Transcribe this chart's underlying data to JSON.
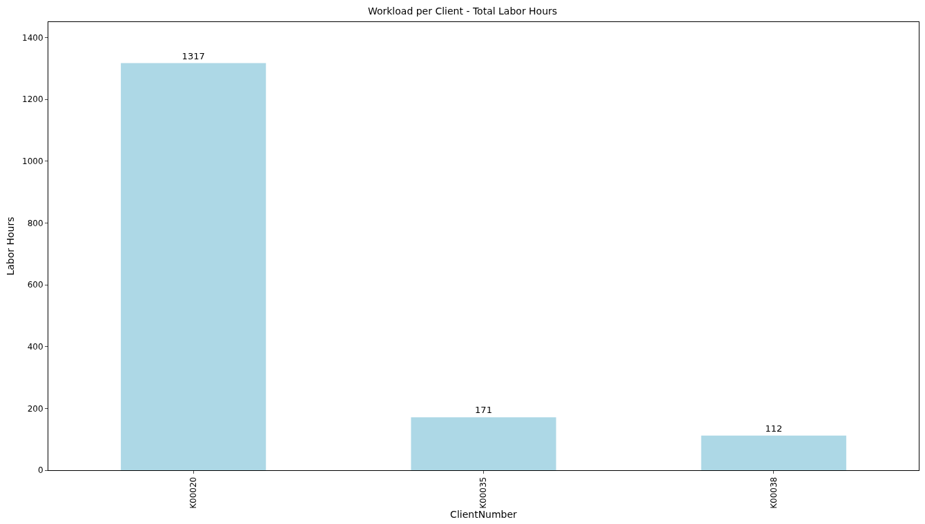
{
  "chart_data": {
    "type": "bar",
    "title": "Workload per Client - Total Labor Hours",
    "xlabel": "ClientNumber",
    "ylabel": "Labor Hours",
    "categories": [
      "K00020",
      "K00035",
      "K00038"
    ],
    "values": [
      1317,
      171,
      112
    ],
    "color": "#add8e6",
    "ylim": [
      0,
      1450
    ],
    "yticks": [
      0,
      200,
      400,
      600,
      800,
      1000,
      1200,
      1400
    ],
    "data_labels": true
  }
}
